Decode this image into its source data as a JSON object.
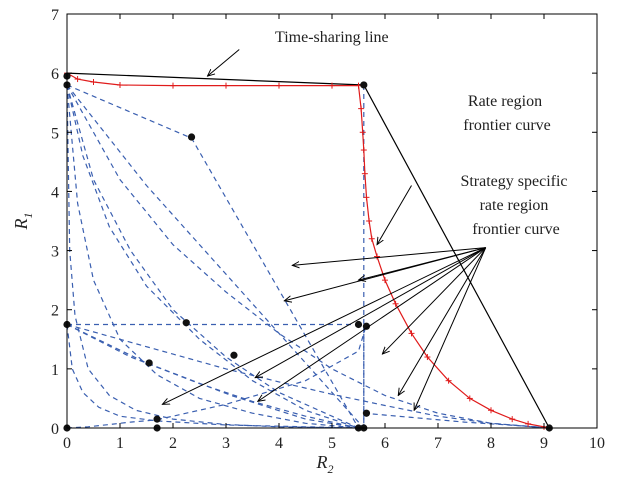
{
  "chart_data": {
    "type": "line",
    "title": "",
    "xlabel": "R",
    "xlabel_sub": "2",
    "ylabel": "R",
    "ylabel_sub": "1",
    "xlim": [
      0,
      10
    ],
    "ylim": [
      0,
      7
    ],
    "xticks": [
      0,
      1,
      2,
      3,
      4,
      5,
      6,
      7,
      8,
      9,
      10
    ],
    "yticks": [
      0,
      1,
      2,
      3,
      4,
      5,
      6,
      7
    ],
    "grid": false,
    "colors": {
      "frontier": "#e01b1b",
      "strategy": "#3a5fb0",
      "time_sharing": "#000000",
      "points": "#111111"
    },
    "annotations": [
      {
        "text": "Time-sharing line",
        "lines": [
          "Time-sharing line"
        ]
      },
      {
        "text": "Rate region frontier curve",
        "lines": [
          "Rate region",
          "frontier curve"
        ]
      },
      {
        "text": "Strategy specific rate region frontier curve",
        "lines": [
          "Strategy specific",
          "rate region",
          "frontier curve"
        ]
      }
    ],
    "series": [
      {
        "role": "time_sharing",
        "style": "solid",
        "x": [
          0,
          5.6,
          9.1
        ],
        "y": [
          6.0,
          5.8,
          0
        ]
      },
      {
        "role": "frontier",
        "style": "plus-line",
        "x": [
          0,
          0.2,
          0.5,
          1,
          2,
          3,
          4,
          5,
          5.5,
          5.55,
          5.58,
          5.6,
          5.62,
          5.65,
          5.7,
          5.75,
          5.85,
          6.0,
          6.2,
          6.5,
          6.8,
          7.2,
          7.6,
          8.0,
          8.4,
          8.7,
          9.0,
          9.1
        ],
        "y": [
          6.0,
          5.9,
          5.85,
          5.8,
          5.79,
          5.79,
          5.79,
          5.79,
          5.79,
          5.4,
          5.0,
          4.7,
          4.3,
          3.9,
          3.5,
          3.2,
          2.9,
          2.5,
          2.1,
          1.6,
          1.2,
          0.8,
          0.5,
          0.3,
          0.15,
          0.07,
          0.02,
          0
        ]
      },
      {
        "role": "strategy",
        "style": "dashed",
        "x": [
          0,
          2.35,
          5.5
        ],
        "y": [
          5.8,
          4.9,
          0
        ]
      },
      {
        "role": "strategy",
        "style": "dashed",
        "x": [
          0,
          0.3,
          0.8,
          1.5,
          2.5,
          3.5,
          4.5,
          5.5
        ],
        "y": [
          5.8,
          4.6,
          3.4,
          2.4,
          1.5,
          0.8,
          0.3,
          0
        ]
      },
      {
        "role": "strategy",
        "style": "dashed",
        "x": [
          0,
          0.5,
          1.2,
          2.0,
          3.0,
          4.0,
          5.0,
          5.5
        ],
        "y": [
          5.8,
          4.2,
          3.0,
          2.0,
          1.2,
          0.6,
          0.2,
          0
        ]
      },
      {
        "role": "strategy",
        "style": "dashed",
        "x": [
          0,
          0.2,
          0.5,
          1.0,
          1.7,
          2.5,
          3.5,
          4.5,
          5.5
        ],
        "y": [
          5.8,
          3.8,
          2.5,
          1.5,
          0.9,
          0.5,
          0.25,
          0.08,
          0
        ]
      },
      {
        "role": "strategy",
        "style": "dashed",
        "x": [
          0,
          0.05,
          0.15,
          0.4,
          0.8,
          1.3,
          2.0,
          3.0,
          4.0,
          5.5
        ],
        "y": [
          5.8,
          3.0,
          1.9,
          1.0,
          0.55,
          0.3,
          0.15,
          0.06,
          0.02,
          0
        ]
      },
      {
        "role": "strategy",
        "style": "dashed",
        "x": [
          0,
          1.5,
          3.0,
          4.5,
          5.6
        ],
        "y": [
          5.8,
          4.1,
          2.6,
          1.1,
          0
        ]
      },
      {
        "role": "strategy",
        "style": "dashed",
        "x": [
          0,
          1.0,
          2.0,
          3.0,
          4.0,
          5.0,
          6.0,
          7.0,
          8.0,
          9.1
        ],
        "y": [
          5.8,
          4.2,
          3.1,
          2.3,
          1.6,
          1.0,
          0.55,
          0.25,
          0.08,
          0
        ]
      },
      {
        "role": "strategy",
        "style": "dashed",
        "x": [
          0,
          2.2,
          5.6,
          5.6
        ],
        "y": [
          1.75,
          1.75,
          1.75,
          0
        ]
      },
      {
        "role": "strategy",
        "style": "dashed",
        "x": [
          5.6,
          5.6
        ],
        "y": [
          5.8,
          0
        ]
      },
      {
        "role": "strategy",
        "style": "dashed",
        "x": [
          0,
          1.0,
          2.0,
          3.0,
          4.0,
          5.0,
          6.0,
          7.0,
          8.0,
          9.1
        ],
        "y": [
          1.75,
          1.5,
          1.25,
          1.0,
          0.78,
          0.57,
          0.38,
          0.2,
          0.08,
          0
        ]
      },
      {
        "role": "strategy",
        "style": "dashed",
        "x": [
          0,
          1.5,
          3.1,
          4.5,
          5.5
        ],
        "y": [
          1.75,
          1.1,
          0.55,
          0.15,
          0
        ]
      },
      {
        "role": "strategy",
        "style": "dashed",
        "x": [
          0,
          0.1,
          0.3,
          0.6,
          1.0,
          1.7,
          3.0,
          4.5,
          5.6
        ],
        "y": [
          1.75,
          1.0,
          0.6,
          0.35,
          0.2,
          0.12,
          0.05,
          0.02,
          0
        ]
      },
      {
        "role": "strategy",
        "style": "dashed",
        "x": [
          0,
          1.2,
          2.5,
          3.5,
          4.5,
          5.5
        ],
        "y": [
          1.75,
          1.2,
          0.75,
          0.45,
          0.2,
          0
        ]
      },
      {
        "role": "strategy",
        "style": "dashed",
        "x": [
          0,
          0.4,
          0.8,
          1.2,
          1.6,
          1.7
        ],
        "y": [
          0.0,
          0.02,
          0.06,
          0.1,
          0.13,
          0.14
        ]
      },
      {
        "role": "strategy",
        "style": "dashed",
        "x": [
          1.7,
          3.0,
          4.5,
          5.5,
          5.65
        ],
        "y": [
          0.14,
          0.4,
          0.8,
          1.3,
          1.75
        ]
      },
      {
        "role": "strategy",
        "style": "dashed",
        "x": [
          5.6,
          6.5,
          7.5,
          8.5,
          9.1
        ],
        "y": [
          0.25,
          0.18,
          0.1,
          0.04,
          0
        ]
      }
    ],
    "points": {
      "x": [
        0,
        0,
        5.6,
        2.35,
        0,
        2.25,
        3.15,
        1.55,
        5.5,
        5.65,
        1.7,
        5.65,
        0,
        1.7,
        5.5,
        5.6,
        9.1
      ],
      "y": [
        5.95,
        5.8,
        5.8,
        4.92,
        1.75,
        1.78,
        1.23,
        1.1,
        1.75,
        1.72,
        0.15,
        0.25,
        0,
        0,
        0,
        0,
        0
      ]
    },
    "arrows": [
      {
        "from": [
          3.25,
          6.4
        ],
        "to": [
          2.65,
          5.95
        ]
      },
      {
        "from": [
          6.5,
          4.1
        ],
        "to": [
          5.85,
          3.1
        ]
      },
      {
        "from": [
          7.9,
          3.05
        ],
        "to": [
          4.25,
          2.75
        ]
      },
      {
        "from": [
          7.9,
          3.05
        ],
        "to": [
          4.1,
          2.15
        ]
      },
      {
        "from": [
          7.9,
          3.05
        ],
        "to": [
          5.5,
          2.5
        ]
      },
      {
        "from": [
          7.9,
          3.05
        ],
        "to": [
          3.55,
          0.85
        ]
      },
      {
        "from": [
          7.9,
          3.05
        ],
        "to": [
          3.6,
          0.45
        ]
      },
      {
        "from": [
          7.9,
          3.05
        ],
        "to": [
          1.8,
          0.4
        ]
      },
      {
        "from": [
          7.9,
          3.05
        ],
        "to": [
          5.95,
          1.25
        ]
      },
      {
        "from": [
          7.9,
          3.05
        ],
        "to": [
          6.25,
          0.55
        ]
      },
      {
        "from": [
          7.9,
          3.05
        ],
        "to": [
          6.55,
          0.3
        ]
      }
    ]
  }
}
